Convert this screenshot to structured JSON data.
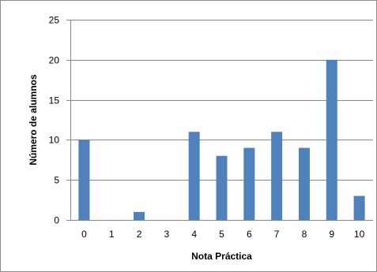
{
  "chart_data": {
    "type": "bar",
    "categories": [
      "0",
      "1",
      "2",
      "3",
      "4",
      "5",
      "6",
      "7",
      "8",
      "9",
      "10"
    ],
    "values": [
      10,
      0,
      1,
      0,
      11,
      8,
      9,
      11,
      9,
      20,
      3
    ],
    "xlabel": "Nota Práctica",
    "ylabel": "Número de alumnos",
    "ylim": [
      0,
      25
    ],
    "yticks": [
      "0",
      "5",
      "10",
      "15",
      "20",
      "25"
    ],
    "grid": true,
    "legend": "none",
    "colors": {
      "bar": "#4F81BD",
      "grid": "#868686",
      "axis": "#868686"
    }
  }
}
